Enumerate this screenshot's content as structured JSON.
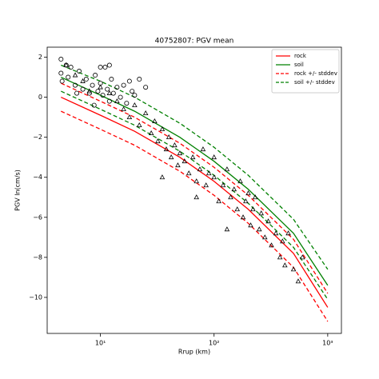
{
  "chart_data": {
    "type": "scatter",
    "title": "40752807: PGV mean",
    "xlabel": "Rrup (km)",
    "ylabel": "PGV ln(cm/s)",
    "xscale": "log",
    "xlim": [
      3.4,
      1320
    ],
    "ylim": [
      -11.8,
      2.5
    ],
    "xticks": [
      {
        "value": 10,
        "label": "10¹"
      },
      {
        "value": 100,
        "label": "10²"
      },
      {
        "value": 1000,
        "label": "10³"
      }
    ],
    "yticks": [
      2,
      0,
      {
        "value": -2,
        "label": "−2"
      },
      {
        "value": -4,
        "label": "−4"
      },
      {
        "value": -6,
        "label": "−6"
      },
      {
        "value": -8,
        "label": "−8"
      },
      {
        "value": -10,
        "label": "−10"
      }
    ],
    "legend": "upper right",
    "x": [
      4.5,
      10,
      20,
      50,
      100,
      200,
      500,
      1000
    ],
    "series": [
      {
        "name": "rock",
        "color": "#ff0000",
        "style": "solid",
        "values": [
          0.0,
          -0.9,
          -1.7,
          -3.0,
          -4.2,
          -5.6,
          -7.8,
          -10.5
        ]
      },
      {
        "name": "soil",
        "color": "#008000",
        "style": "solid",
        "values": [
          1.0,
          0.1,
          -0.7,
          -2.0,
          -3.2,
          -4.6,
          -6.8,
          -9.4
        ]
      },
      {
        "name": "rock +/- stddev",
        "color": "#ff0000",
        "style": "dashed",
        "values": [
          -0.7,
          -1.6,
          -2.4,
          -3.7,
          -4.9,
          -6.3,
          -8.5,
          -11.2
        ]
      },
      {
        "name": "soil +/- stddev",
        "color": "#008000",
        "style": "dashed",
        "values": [
          1.6,
          0.8,
          0.0,
          -1.3,
          -2.5,
          -3.9,
          -6.1,
          -8.6
        ]
      }
    ],
    "extra_series": [
      {
        "color": "#ff0000",
        "style": "dashed",
        "values": [
          0.7,
          -0.2,
          -1.0,
          -2.3,
          -3.5,
          -4.9,
          -7.1,
          -9.8
        ]
      },
      {
        "color": "#008000",
        "style": "dashed",
        "values": [
          0.3,
          -0.6,
          -1.4,
          -2.7,
          -3.9,
          -5.3,
          -7.5,
          -10.1
        ]
      }
    ],
    "points": [
      {
        "marker": "circle",
        "x": [
          4.5,
          4.5,
          4.6,
          5,
          5.2,
          5.5,
          6,
          6.5,
          7,
          7.5,
          8,
          8.5,
          9,
          9.5,
          10,
          10.5,
          11,
          11.5,
          12,
          12.5,
          13,
          14,
          15,
          16,
          17,
          18,
          19,
          20,
          22,
          25,
          6.2,
          8.8,
          10,
          12
        ],
        "y": [
          1.9,
          1.2,
          0.8,
          1.6,
          1.0,
          1.5,
          0.6,
          1.3,
          0.4,
          0.9,
          0.2,
          0.6,
          1.1,
          0.3,
          0.7,
          0.1,
          1.5,
          0.4,
          -0.2,
          0.9,
          0.2,
          0.5,
          0.0,
          0.6,
          -0.3,
          0.8,
          0.3,
          0.1,
          0.9,
          0.5,
          0.2,
          -0.4,
          1.5,
          1.6
        ]
      },
      {
        "marker": "triangle",
        "x": [
          5,
          6,
          7,
          8,
          10,
          12,
          14,
          16,
          18,
          20,
          22,
          25,
          28,
          30,
          32,
          35,
          38,
          40,
          42,
          45,
          48,
          50,
          55,
          60,
          35,
          65,
          70,
          75,
          80,
          85,
          90,
          100,
          100,
          110,
          120,
          130,
          140,
          150,
          160,
          170,
          180,
          190,
          200,
          210,
          220,
          230,
          250,
          260,
          280,
          300,
          320,
          350,
          380,
          400,
          420,
          450,
          500,
          550,
          600,
          130,
          70
        ],
        "y": [
          1.6,
          1.1,
          0.8,
          0.3,
          0.5,
          0.2,
          -0.2,
          -0.6,
          -1.0,
          -0.4,
          -1.4,
          -0.8,
          -1.8,
          -1.2,
          -2.2,
          -1.6,
          -2.6,
          -2.0,
          -3.0,
          -2.4,
          -3.4,
          -2.8,
          -3.2,
          -3.8,
          -4.0,
          -3.0,
          -4.2,
          -3.6,
          -2.6,
          -4.4,
          -3.8,
          -4.0,
          -3.0,
          -5.2,
          -4.4,
          -3.6,
          -5.0,
          -4.6,
          -5.6,
          -4.2,
          -6.0,
          -5.2,
          -4.8,
          -6.4,
          -5.6,
          -5.0,
          -6.6,
          -5.8,
          -7.0,
          -6.2,
          -7.4,
          -6.8,
          -8.0,
          -7.2,
          -8.4,
          -6.8,
          -8.6,
          -9.2,
          -8.0,
          -6.6,
          -5.0
        ]
      }
    ]
  }
}
